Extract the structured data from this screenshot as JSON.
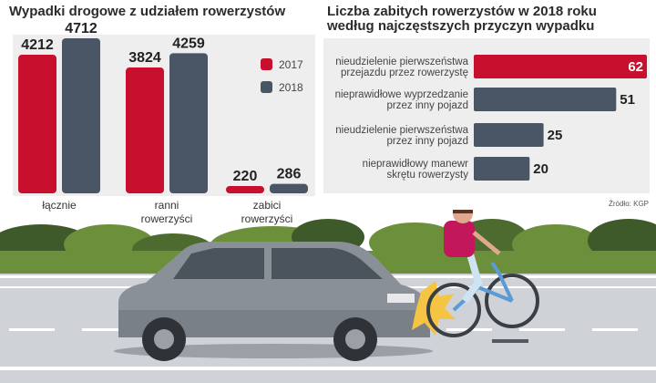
{
  "chart_data": [
    {
      "type": "bar",
      "title": "Wypadki drogowe z udziałem rowerzystów",
      "categories": [
        [
          "łącznie"
        ],
        [
          "ranni",
          "rowerzyści"
        ],
        [
          "zabici",
          "rowerzyści"
        ]
      ],
      "series": [
        {
          "name": "2017",
          "values": [
            4212,
            3824,
            220
          ],
          "color": "#c8102e"
        },
        {
          "name": "2018",
          "values": [
            4712,
            4259,
            286
          ],
          "color": "#4a5666"
        }
      ],
      "value_labels": {
        "2017": [
          "4212",
          "3824",
          "220"
        ],
        "2018": [
          "4712",
          "4259",
          "286"
        ]
      },
      "ylim": [
        0,
        4712
      ],
      "legend": "right"
    },
    {
      "type": "bar",
      "orientation": "horizontal",
      "title_lines": [
        "Liczba zabitych rowerzystów w 2018 roku",
        "według najczęstszych przyczyn wypadku"
      ],
      "categories": [
        [
          "nieudzielenie pierwszeństwa",
          "przejazdu przez rowerzystę"
        ],
        [
          "nieprawidłowe wyprzedzanie",
          "przez inny pojazd"
        ],
        [
          "nieudzielenie pierwszeństwa",
          "przez inny pojazd"
        ],
        [
          "nieprawidłowy manewr",
          "skrętu rowerzysty"
        ]
      ],
      "values": [
        62,
        51,
        25,
        20
      ],
      "value_labels": [
        "62",
        "51",
        "25",
        "20"
      ],
      "highlight_index": 0,
      "colors": {
        "highlight": "#c8102e",
        "normal": "#4a5666"
      },
      "xlim": [
        0,
        62
      ]
    }
  ],
  "source": "Źródło: KGP"
}
